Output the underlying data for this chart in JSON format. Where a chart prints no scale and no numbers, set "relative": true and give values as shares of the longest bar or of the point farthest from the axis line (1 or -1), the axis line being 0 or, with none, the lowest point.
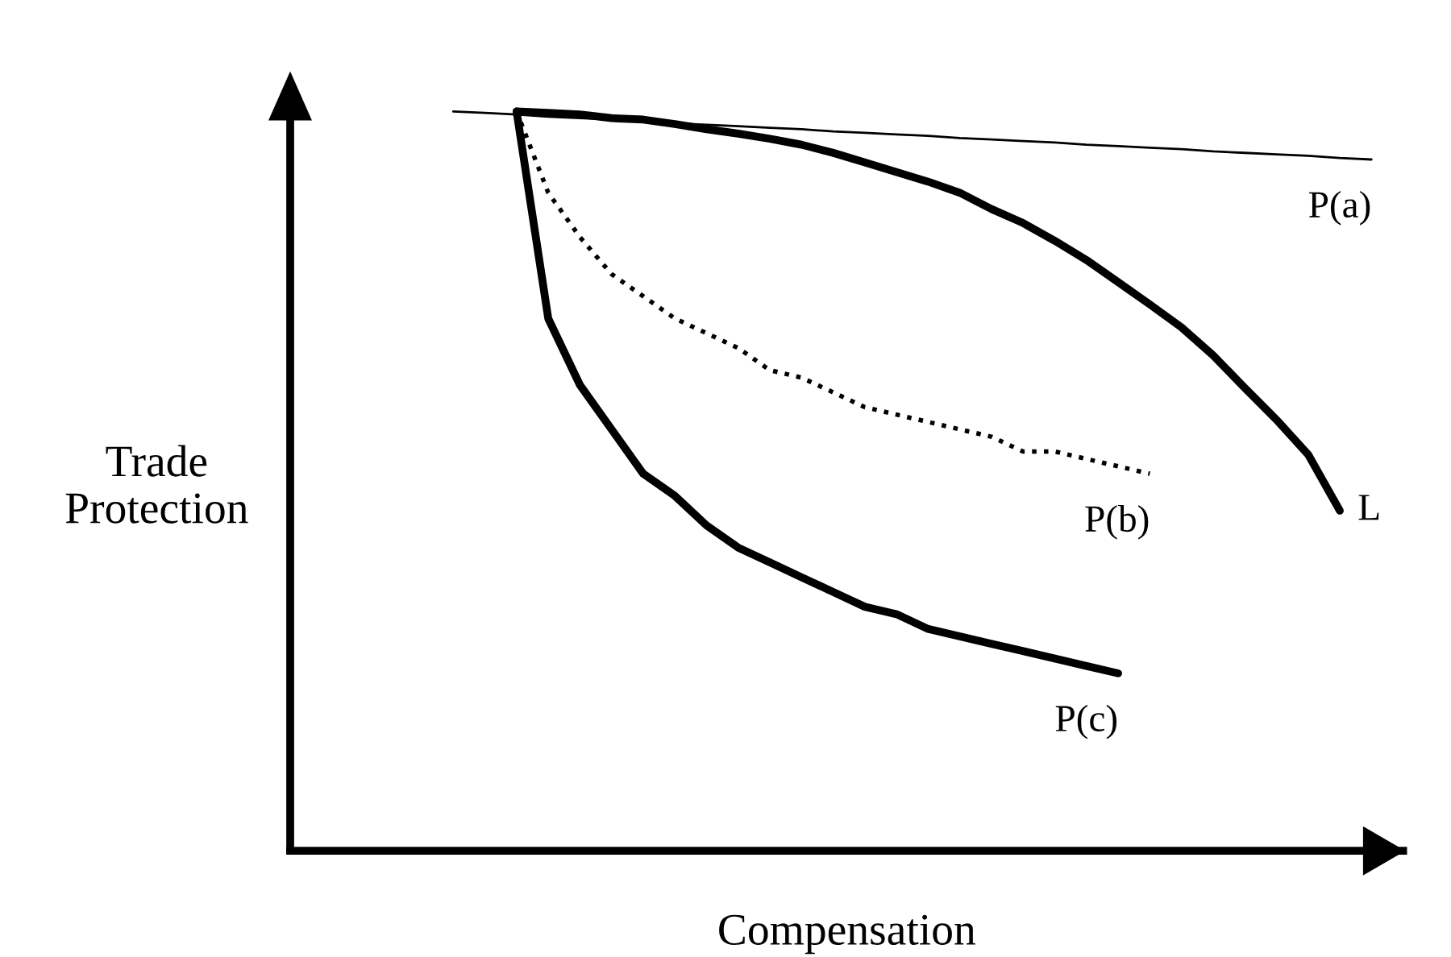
{
  "chart_data": {
    "type": "line",
    "relative": true,
    "tick_labels": false,
    "grid": false,
    "legend": false,
    "xlabel": "Compensation",
    "ylabel": "Trade\nProtection",
    "categories": [
      null,
      null,
      null,
      null,
      null,
      null,
      null,
      null,
      null,
      null,
      null,
      null,
      null,
      null,
      null,
      null,
      null,
      null,
      null,
      null,
      null,
      null,
      null,
      null,
      null,
      null,
      null,
      null,
      null,
      null,
      null,
      null,
      null,
      null,
      null
    ],
    "series": [
      {
        "name": "P(a)",
        "color": "#000000",
        "line_style": "solid",
        "values": [
          null,
          null,
          null,
          null,
          1.0,
          0.998,
          0.996,
          0.993,
          0.991,
          0.989,
          0.987,
          0.984,
          0.982,
          0.98,
          0.978,
          0.976,
          0.973,
          0.971,
          0.969,
          0.967,
          0.964,
          0.962,
          0.96,
          0.958,
          0.955,
          0.953,
          0.951,
          0.949,
          0.946,
          0.944,
          0.942,
          0.94,
          0.937,
          0.935,
          null
        ]
      },
      {
        "name": "L",
        "color": "#000000",
        "line_style": "solid",
        "values": [
          null,
          null,
          null,
          null,
          null,
          null,
          1.0,
          0.998,
          0.996,
          0.991,
          0.989,
          0.983,
          0.976,
          0.97,
          0.963,
          0.955,
          0.944,
          0.931,
          0.918,
          0.905,
          0.89,
          0.868,
          0.849,
          0.825,
          0.799,
          0.769,
          0.739,
          0.708,
          0.67,
          0.626,
          0.583,
          0.536,
          0.46,
          null,
          null
        ]
      },
      {
        "name": "P(b)",
        "color": "#000000",
        "line_style": "dotted",
        "values": [
          null,
          null,
          null,
          null,
          null,
          null,
          1.0,
          0.89,
          0.83,
          0.78,
          0.75,
          0.72,
          0.7,
          0.68,
          0.65,
          0.64,
          0.62,
          0.6,
          0.59,
          0.58,
          0.57,
          0.56,
          0.54,
          0.54,
          0.53,
          0.52,
          0.51,
          null,
          null,
          null,
          null,
          null,
          null,
          null,
          null
        ]
      },
      {
        "name": "P(c)",
        "color": "#000000",
        "line_style": "solid",
        "values": [
          null,
          null,
          null,
          null,
          null,
          null,
          1.0,
          0.72,
          0.63,
          0.57,
          0.51,
          0.48,
          0.44,
          0.41,
          0.39,
          0.37,
          0.35,
          0.33,
          0.32,
          0.3,
          0.29,
          0.28,
          0.27,
          0.26,
          0.25,
          0.24,
          null,
          null,
          null,
          null,
          null,
          null,
          null,
          null,
          null
        ]
      }
    ]
  }
}
